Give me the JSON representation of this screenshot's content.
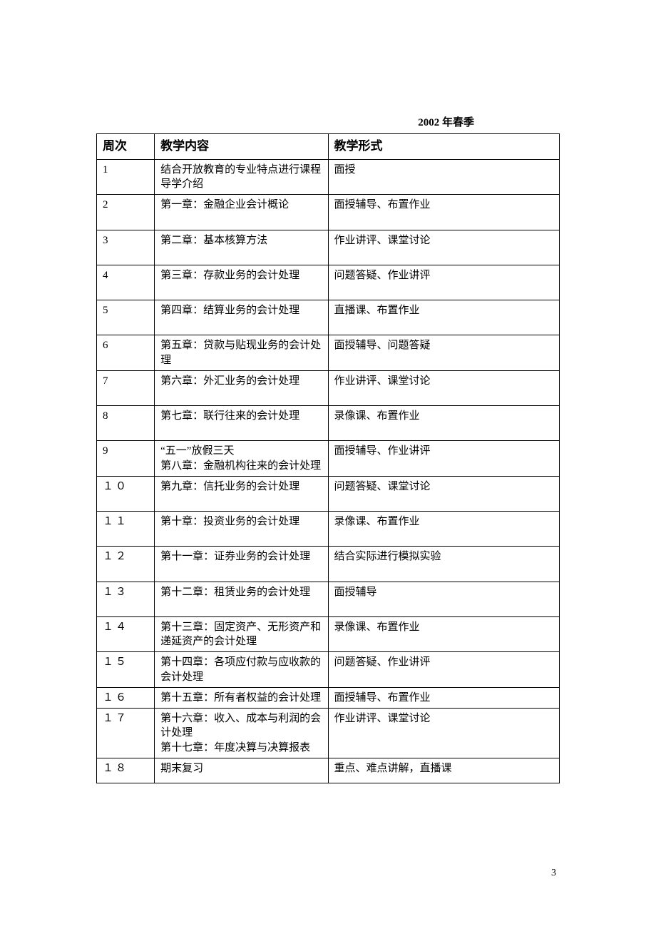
{
  "header": "2002 年春季",
  "page_number": "3",
  "table": {
    "columns": [
      "周次",
      "教学内容",
      "教学形式"
    ],
    "col_widths_pct": [
      12.5,
      37.5,
      50
    ],
    "border_color": "#000000",
    "background_color": "#ffffff",
    "header_fontsize": 17,
    "cell_fontsize": 15,
    "rows": [
      {
        "week": "1",
        "content": "结合开放教育的专业特点进行课程导学介绍",
        "form": "面授",
        "pad": "none"
      },
      {
        "week": "2",
        "content": "第一章：金融企业会计概论",
        "form": "面授辅导、布置作业",
        "pad": "lg"
      },
      {
        "week": "3",
        "content": "第二章：基本核算方法",
        "form": "作业讲评、课堂讨论",
        "pad": "lg"
      },
      {
        "week": "4",
        "content": "第三章：存款业务的会计处理",
        "form": "问题答疑、作业讲评",
        "pad": "lg"
      },
      {
        "week": "5",
        "content": "第四章：结算业务的会计处理",
        "form": "直播课、布置作业",
        "pad": "lg"
      },
      {
        "week": "6",
        "content": "第五章：贷款与贴现业务的会计处理",
        "form": "面授辅导、问题答疑",
        "pad": "none"
      },
      {
        "week": "7",
        "content": "第六章：外汇业务的会计处理",
        "form": "作业讲评、课堂讨论",
        "pad": "lg"
      },
      {
        "week": "8",
        "content": "第七章：联行往来的会计处理",
        "form": "录像课、布置作业",
        "pad": "lg"
      },
      {
        "week": "9",
        "content": "“五一”放假三天\n第八章：金融机构往来的会计处理",
        "form": "面授辅导、作业讲评",
        "pad": "none"
      },
      {
        "week": "１０",
        "content": "第九章：信托业务的会计处理",
        "form": "问题答疑、课堂讨论",
        "pad": "lg"
      },
      {
        "week": "１１",
        "content": "第十章：投资业务的会计处理",
        "form": "录像课、布置作业",
        "pad": "lg"
      },
      {
        "week": "１２",
        "content": "第十一章：证券业务的会计处理",
        "form": "结合实际进行模拟实验",
        "pad": "lg"
      },
      {
        "week": "１３",
        "content": "第十二章：租赁业务的会计处理",
        "form": "面授辅导",
        "pad": "lg"
      },
      {
        "week": "１４",
        "content": "第十三章：固定资产、无形资产和递延资产的会计处理",
        "form": "录像课、布置作业",
        "pad": "none"
      },
      {
        "week": "１５",
        "content": "第十四章：各项应付款与应收款的会计处理",
        "form": "问题答疑、作业讲评",
        "pad": "none"
      },
      {
        "week": "１６",
        "content": "第十五章：所有者权益的会计处理",
        "form": "面授辅导、布置作业",
        "pad": "none"
      },
      {
        "week": "１７",
        "content": "第十六章：收入、成本与利润的会计处理\n第十七章：年度决算与决算报表",
        "form": "作业讲评、课堂讨论",
        "pad": "none"
      },
      {
        "week": "１８",
        "content": "期末复习",
        "form": "重点、难点讲解，直播课",
        "pad": "sm"
      }
    ]
  }
}
